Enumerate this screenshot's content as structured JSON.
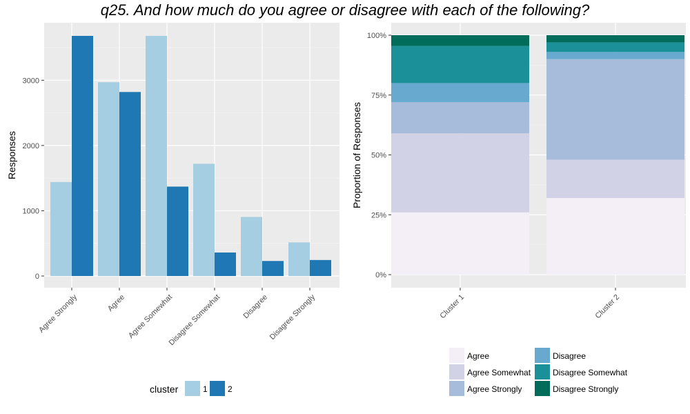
{
  "title": "q25. And how much do you agree or disagree with each of the following?",
  "chart_data": [
    {
      "type": "bar",
      "categories": [
        "Agree Strongly",
        "Agree",
        "Agree Somewhat",
        "Disagree Somewhat",
        "Disagree",
        "Disagree Strongly"
      ],
      "series": [
        {
          "name": "1",
          "values": [
            1440,
            2970,
            3680,
            1720,
            905,
            515
          ],
          "color": "#a6cee3"
        },
        {
          "name": "2",
          "values": [
            3680,
            2820,
            1370,
            360,
            230,
            245
          ],
          "color": "#1f78b4"
        }
      ],
      "xlabel": "",
      "ylabel": "Responses",
      "yticks": [
        0,
        1000,
        2000,
        3000
      ],
      "ylim": [
        0,
        3680
      ],
      "legend_title": "cluster",
      "legend_position": "bottom",
      "grid": true
    },
    {
      "type": "bar",
      "stacked": true,
      "categories": [
        "Cluster 1",
        "Cluster 2"
      ],
      "series": [
        {
          "name": "Agree",
          "values": [
            0.26,
            0.32
          ],
          "color": "#f4eef7"
        },
        {
          "name": "Agree Somewhat",
          "values": [
            0.33,
            0.16
          ],
          "color": "#d1d2e6"
        },
        {
          "name": "Agree Strongly",
          "values": [
            0.13,
            0.42
          ],
          "color": "#a7bcdb"
        },
        {
          "name": "Disagree",
          "values": [
            0.08,
            0.03
          ],
          "color": "#67a9cf"
        },
        {
          "name": "Disagree Somewhat",
          "values": [
            0.155,
            0.04
          ],
          "color": "#1c9099"
        },
        {
          "name": "Disagree Strongly",
          "values": [
            0.045,
            0.03
          ],
          "color": "#016c59"
        }
      ],
      "xlabel": "",
      "ylabel": "Proportion of Responses",
      "yticks": [
        "0%",
        "25%",
        "50%",
        "75%",
        "100%"
      ],
      "ylim": [
        0,
        1
      ],
      "legend_position": "bottom",
      "grid": true
    }
  ]
}
